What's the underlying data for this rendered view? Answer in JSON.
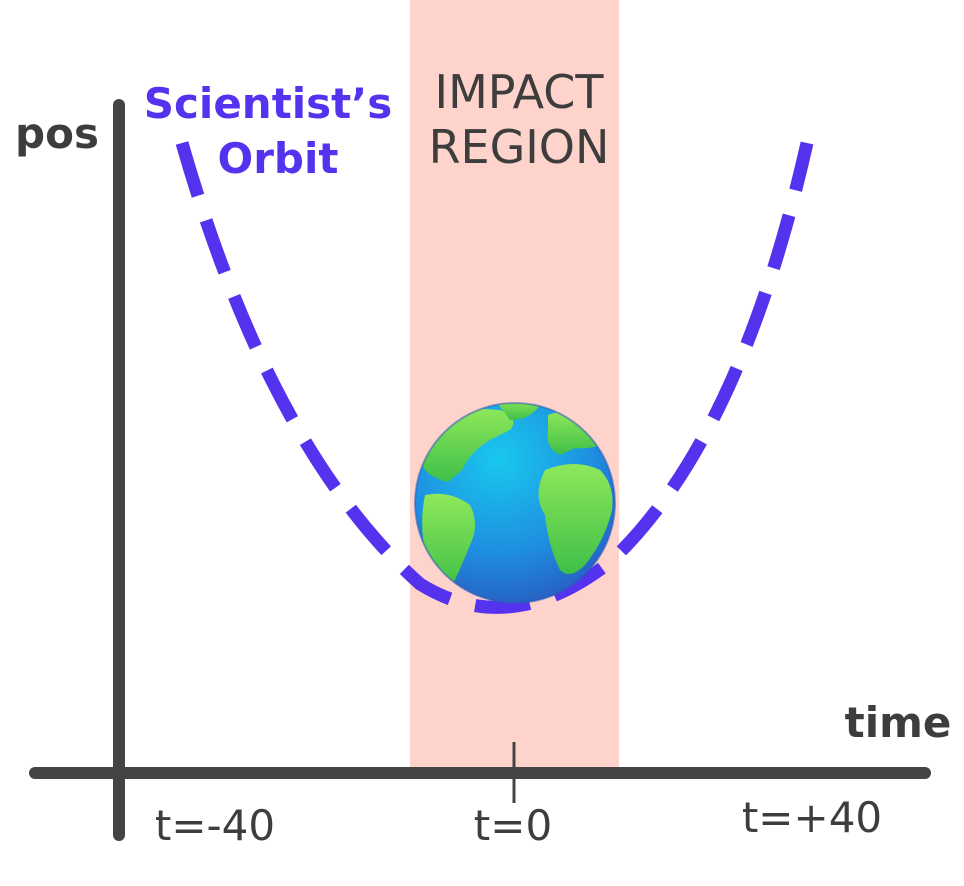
{
  "axes": {
    "y_label": "pos",
    "x_label": "time",
    "ticks": [
      "t=-40",
      "t=0",
      "t=+40"
    ]
  },
  "impact_region": {
    "line1": "IMPACT",
    "line2": "REGION",
    "color": "#fdd3cb"
  },
  "orbit": {
    "label_line1": "Scientist’s",
    "label_line2": "Orbit",
    "color": "#5533ee"
  },
  "colors": {
    "axis": "#444444",
    "text": "#3d3d3d"
  },
  "icons": {
    "earth": "earth-globe-icon"
  }
}
